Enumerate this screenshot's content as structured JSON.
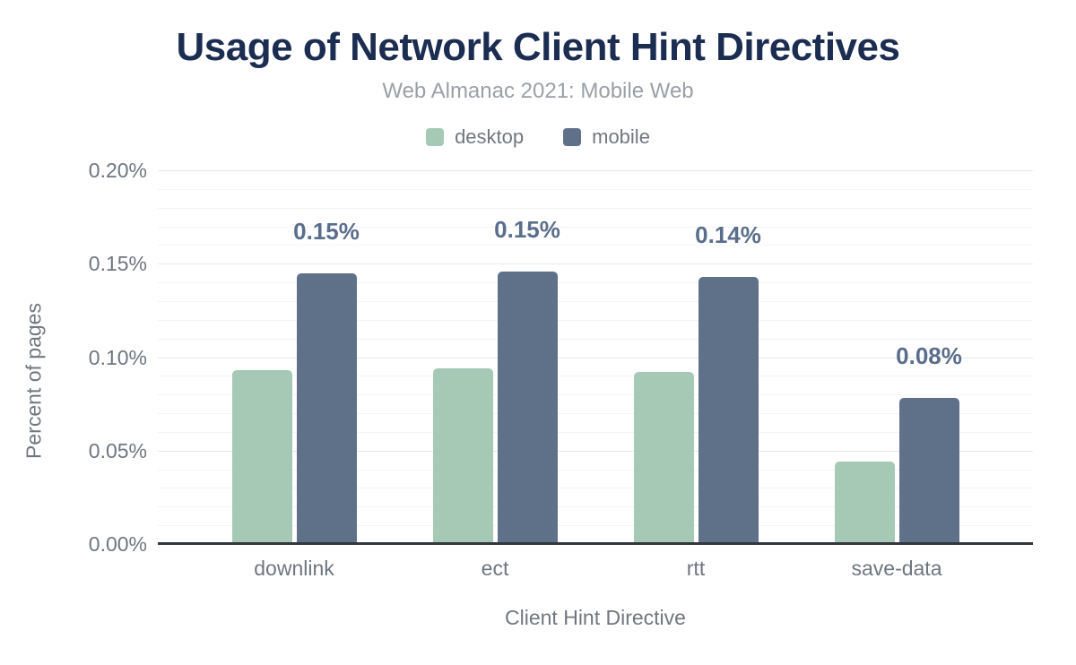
{
  "header": {
    "title": "Usage of Network Client Hint Directives",
    "subtitle": "Web Almanac 2021: Mobile Web"
  },
  "chart_data": {
    "type": "bar",
    "title": "Usage of Network Client Hint Directives",
    "subtitle": "Web Almanac 2021: Mobile Web",
    "categories": [
      "downlink",
      "ect",
      "rtt",
      "save-data"
    ],
    "series": [
      {
        "name": "desktop",
        "color": "#a5c9b4",
        "values": [
          0.093,
          0.094,
          0.092,
          0.044
        ]
      },
      {
        "name": "mobile",
        "color": "#5f7189",
        "values": [
          0.145,
          0.146,
          0.143,
          0.078
        ],
        "data_labels": [
          "0.15%",
          "0.15%",
          "0.14%",
          "0.08%"
        ]
      }
    ],
    "xlabel": "Client Hint Directive",
    "ylabel": "Percent of pages",
    "ylim": [
      0,
      0.2
    ],
    "yticks": [
      {
        "value": 0.0,
        "label": "0.00%"
      },
      {
        "value": 0.05,
        "label": "0.05%"
      },
      {
        "value": 0.1,
        "label": "0.10%"
      },
      {
        "value": 0.15,
        "label": "0.15%"
      },
      {
        "value": 0.2,
        "label": "0.20%"
      }
    ],
    "minor_grid_step": 0.01,
    "major_grid_step": 0.05,
    "grid": true,
    "legend_position": "top",
    "value_unit": "percent of pages"
  },
  "colors": {
    "title": "#1c2d52",
    "subtitle": "#9aa0a6",
    "axis_text": "#6e7680",
    "data_label": "#5a6e8c",
    "axis_line": "#32383e",
    "grid_major": "#e7e9ec",
    "grid_minor": "#f3f4f6",
    "background": "#ffffff"
  }
}
